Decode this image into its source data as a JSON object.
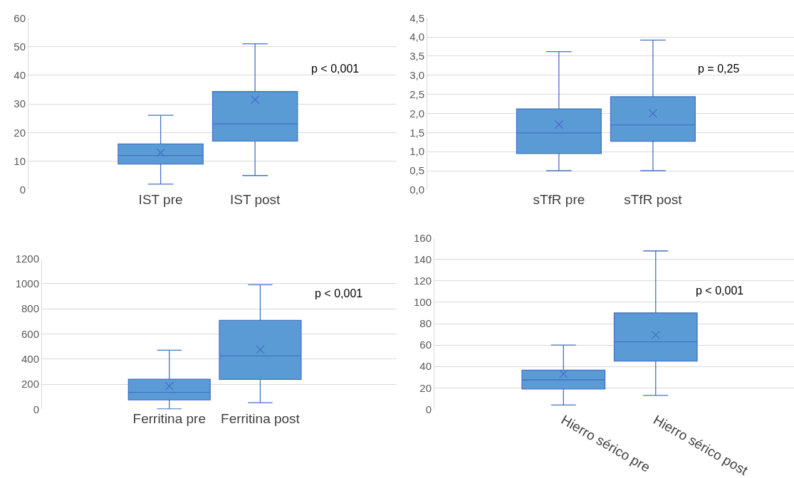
{
  "chart_data": [
    {
      "type": "box",
      "categories": [
        "IST pre",
        "IST post"
      ],
      "color": "#5b9bd5",
      "grid": "y",
      "ylim": [
        0,
        60
      ],
      "yticks": [
        0,
        10,
        20,
        30,
        40,
        50,
        60
      ],
      "annotations": [
        "p < 0,001"
      ],
      "boxes": [
        {
          "low": 2,
          "q1": 9,
          "median": 12,
          "q3": 16,
          "high": 26,
          "mean": 13
        },
        {
          "low": 5,
          "q1": 17,
          "median": 23,
          "q3": 34.3,
          "high": 51,
          "mean": 31.5
        }
      ]
    },
    {
      "type": "box",
      "categories": [
        "sTfR pre",
        "sTfR post"
      ],
      "color": "#5b9bd5",
      "grid": "y",
      "ylim": [
        0,
        4.5
      ],
      "yticks": [
        {
          "value": 0,
          "label": "0,0"
        },
        {
          "value": 0.5,
          "label": "0,5"
        },
        {
          "value": 1,
          "label": "1,0"
        },
        {
          "value": 1.5,
          "label": "1,5"
        },
        {
          "value": 2,
          "label": "2,0"
        },
        {
          "value": 2.5,
          "label": "2,5"
        },
        {
          "value": 3,
          "label": "3,0"
        },
        {
          "value": 3.5,
          "label": "3,5"
        },
        {
          "value": 4,
          "label": "4,0"
        },
        {
          "value": 4.5,
          "label": "4,5"
        }
      ],
      "annotations": [
        "p = 0,25"
      ],
      "boxes": [
        {
          "low": 0.5,
          "q1": 0.95,
          "median": 1.49,
          "q3": 2.12,
          "high": 3.62,
          "mean": 1.71
        },
        {
          "low": 0.5,
          "q1": 1.27,
          "median": 1.7,
          "q3": 2.44,
          "high": 3.92,
          "mean": 2.0
        }
      ]
    },
    {
      "type": "box",
      "categories": [
        "Ferritina pre",
        "Ferritina post"
      ],
      "color": "#5b9bd5",
      "grid": "y",
      "ylim": [
        0,
        1200
      ],
      "yticks": [
        0,
        200,
        400,
        600,
        800,
        1000,
        1200
      ],
      "annotations": [
        "p < 0,001"
      ],
      "boxes": [
        {
          "low": 3,
          "q1": 75,
          "median": 135,
          "q3": 240,
          "high": 470,
          "mean": 185
        },
        {
          "low": 52,
          "q1": 238,
          "median": 425,
          "q3": 708,
          "high": 992,
          "mean": 477
        }
      ]
    },
    {
      "type": "box",
      "categories": [
        "Hierro sérico pre",
        "Hierro sérico post"
      ],
      "color": "#5b9bd5",
      "grid": "y",
      "ylim": [
        0,
        160
      ],
      "yticks": [
        0,
        20,
        40,
        60,
        80,
        100,
        120,
        140,
        160
      ],
      "annotations": [
        "p < 0,001"
      ],
      "boxes": [
        {
          "low": 4,
          "q1": 19,
          "median": 27.5,
          "q3": 36.5,
          "high": 60,
          "mean": 33
        },
        {
          "low": 13,
          "q1": 45,
          "median": 63,
          "q3": 90,
          "high": 148,
          "mean": 69.5
        }
      ]
    }
  ]
}
